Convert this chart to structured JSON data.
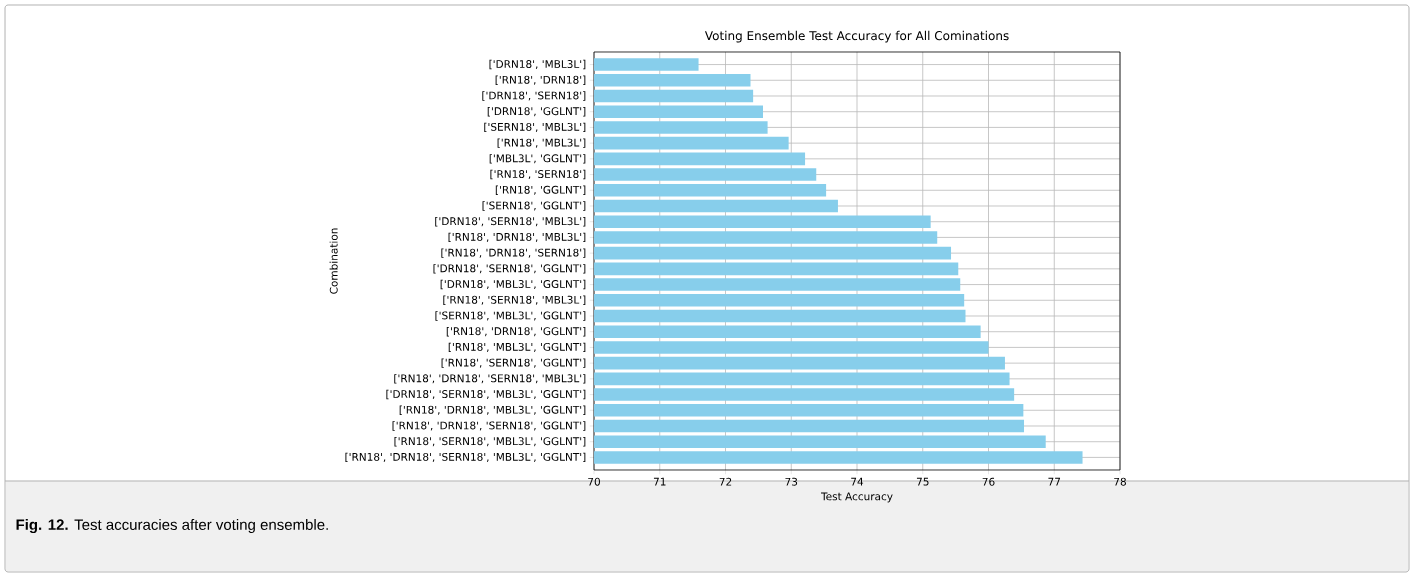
{
  "chart_data": {
    "type": "bar",
    "orientation": "horizontal",
    "title": "Voting Ensemble Test Accuracy for All Cominations",
    "xlabel": "Test Accuracy",
    "ylabel": "Combination",
    "categories": [
      "['DRN18', 'MBL3L']",
      "['RN18', 'DRN18']",
      "['DRN18', 'SERN18']",
      "['DRN18', 'GGLNT']",
      "['SERN18', 'MBL3L']",
      "['RN18', 'MBL3L']",
      "['MBL3L', 'GGLNT']",
      "['RN18', 'SERN18']",
      "['RN18', 'GGLNT']",
      "['SERN18', 'GGLNT']",
      "['DRN18', 'SERN18', 'MBL3L']",
      "['RN18', 'DRN18', 'MBL3L']",
      "['RN18', 'DRN18', 'SERN18']",
      "['DRN18', 'SERN18', 'GGLNT']",
      "['DRN18', 'MBL3L', 'GGLNT']",
      "['RN18', 'SERN18', 'MBL3L']",
      "['SERN18', 'MBL3L', 'GGLNT']",
      "['RN18', 'DRN18', 'GGLNT']",
      "['RN18', 'MBL3L', 'GGLNT']",
      "['RN18', 'SERN18', 'GGLNT']",
      "['RN18', 'DRN18', 'SERN18', 'MBL3L']",
      "['DRN18', 'SERN18', 'MBL3L', 'GGLNT']",
      "['RN18', 'DRN18', 'MBL3L', 'GGLNT']",
      "['RN18', 'DRN18', 'SERN18', 'GGLNT']",
      "['RN18', 'SERN18', 'MBL3L', 'GGLNT']",
      "['RN18', 'DRN18', 'SERN18', 'MBL3L', 'GGLNT']"
    ],
    "values": [
      71.59,
      72.38,
      72.42,
      72.57,
      72.64,
      72.96,
      73.21,
      73.38,
      73.53,
      73.71,
      75.12,
      75.22,
      75.43,
      75.54,
      75.57,
      75.63,
      75.65,
      75.88,
      76.0,
      76.25,
      76.32,
      76.39,
      76.53,
      76.54,
      76.87,
      77.43
    ],
    "color": "#87ceeb",
    "xlim": [
      70,
      78
    ],
    "xticks": [
      70,
      71,
      72,
      73,
      74,
      75,
      76,
      77,
      78
    ],
    "grid": true,
    "annotations": [
      "**Fig. 12.** Test accuracies after voting ensemble."
    ]
  }
}
